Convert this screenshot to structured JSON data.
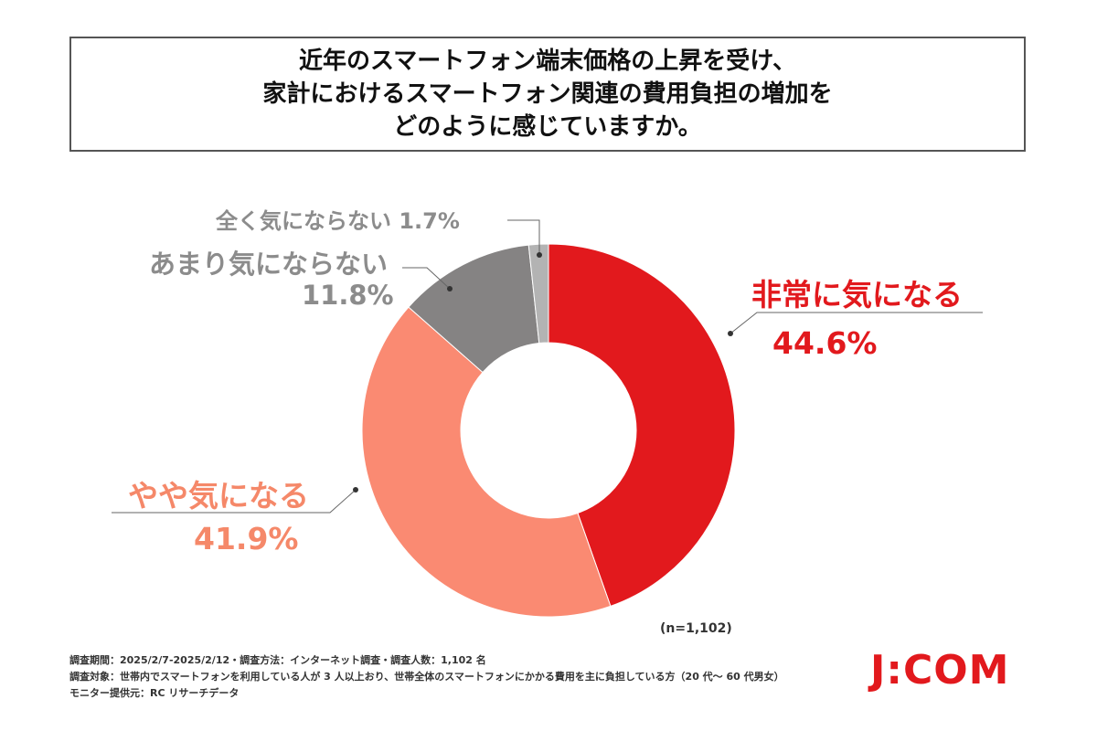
{
  "title": {
    "line1": "近年のスマートフォン端末価格の上昇を受け、",
    "line2": "家計におけるスマートフォン関連の費用負担の増加を",
    "line3": "どのように感じていますか。"
  },
  "chart_data": {
    "type": "pie",
    "style": "donut",
    "start": "top, clockwise",
    "labels": [
      "非常に気になる",
      "やや気になる",
      "あまり気にならない",
      "全く気にならない"
    ],
    "values": [
      44.6,
      41.9,
      11.8,
      1.7
    ],
    "value_labels": [
      "44.6%",
      "41.9%",
      "11.8%",
      "1.7%"
    ],
    "colors": [
      "#e2191d",
      "#fa8a72",
      "#858383",
      "#b3b3b3"
    ],
    "n_label": "(n=1,102)"
  },
  "labels": {
    "very": {
      "name": "非常に気になる",
      "value": "44.6%"
    },
    "somewhat": {
      "name": "やや気になる",
      "value": "41.9%"
    },
    "not_much": {
      "name": "あまり気にならない",
      "value": "11.8%"
    },
    "not_at_all": {
      "text": "全く気にならない 1.7%"
    }
  },
  "footer": {
    "line1": "調査期間：2025/2/7-2025/2/12・調査方法：インターネット調査・調査人数：1,102 名",
    "line2": "調査対象：世帯内でスマートフォンを利用している人が 3 人以上おり、世帯全体のスマートフォンにかかる費用を主に負担している方（20 代～ 60 代男女）",
    "line3": "モニター提供元：RC リサーチデータ"
  },
  "logo": {
    "text": "J:COM"
  }
}
